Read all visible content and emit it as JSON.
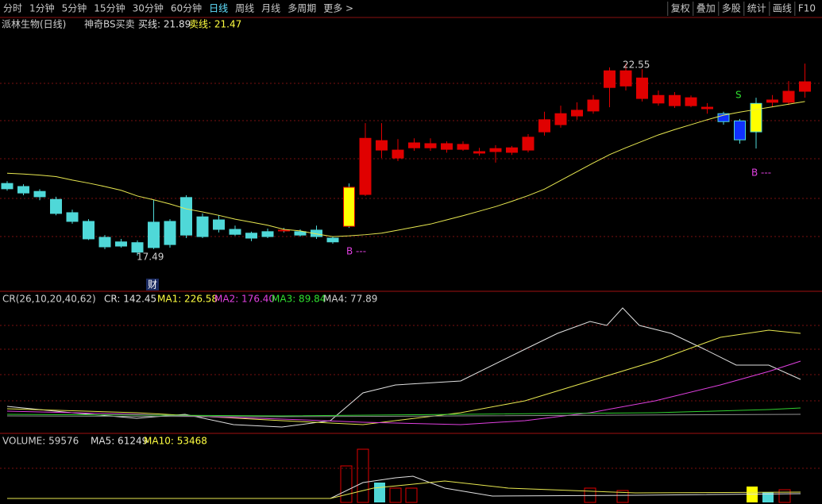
{
  "toolbar": {
    "periods": [
      "分时",
      "1分钟",
      "5分钟",
      "15分钟",
      "30分钟",
      "60分钟",
      "日线",
      "周线",
      "月线",
      "多周期",
      "更多 >"
    ],
    "tools": [
      "复权",
      "叠加",
      "多股",
      "统计",
      "画线",
      "F10"
    ]
  },
  "header": {
    "title": "派林生物(日线)",
    "indicator": "神奇BS买卖",
    "buy_line": "买线: 21.89",
    "sell_line": "卖线: 21.47"
  },
  "chart_data": {
    "type": "candlestick",
    "ylim": [
      16.59,
      23.64
    ],
    "open": [
      19.39,
      19.31,
      19.18,
      18.97,
      18.62,
      18.39,
      17.97,
      17.85,
      17.83,
      18.37,
      18.39,
      19.02,
      18.51,
      18.43,
      18.18,
      18.08,
      18.12,
      18.14,
      18.12,
      18.16,
      17.95,
      18.26,
      19.1,
      20.27,
      20.06,
      20.33,
      20.33,
      20.29,
      20.29,
      20.19,
      20.23,
      20.21,
      20.27,
      20.75,
      20.94,
      21.17,
      21.3,
      21.92,
      21.96,
      21.63,
      21.51,
      21.44,
      21.44,
      21.36,
      21.23,
      21.04,
      20.75,
      21.53,
      21.53,
      21.82
    ],
    "high": [
      19.45,
      19.37,
      19.24,
      19.04,
      18.7,
      18.45,
      18.03,
      17.93,
      17.89,
      18.96,
      18.45,
      19.08,
      18.6,
      18.56,
      18.28,
      18.12,
      18.2,
      18.22,
      18.18,
      18.28,
      17.99,
      19.39,
      20.98,
      20.98,
      20.56,
      20.58,
      20.58,
      20.5,
      20.5,
      20.33,
      20.4,
      20.38,
      20.69,
      21.28,
      21.44,
      21.53,
      21.72,
      22.45,
      22.55,
      22.4,
      21.84,
      21.8,
      21.71,
      21.51,
      21.28,
      21.09,
      21.65,
      21.72,
      22.09,
      22.55
    ],
    "low": [
      19.2,
      19.08,
      18.95,
      18.55,
      18.33,
      17.9,
      17.66,
      17.7,
      17.49,
      17.66,
      17.7,
      17.95,
      17.95,
      18.1,
      18.01,
      17.87,
      17.95,
      18.1,
      17.99,
      17.93,
      17.8,
      18.22,
      19.06,
      20.06,
      19.98,
      20.25,
      20.25,
      20.2,
      20.25,
      20.12,
      19.94,
      20.14,
      20.21,
      20.65,
      20.86,
      21.07,
      21.23,
      21.4,
      21.84,
      21.55,
      21.44,
      21.38,
      21.4,
      21.23,
      20.94,
      20.44,
      20.31,
      21.4,
      21.46,
      21.65
    ],
    "close": [
      19.25,
      19.14,
      19.04,
      18.6,
      18.39,
      17.93,
      17.72,
      17.74,
      17.58,
      17.7,
      17.78,
      18.03,
      17.99,
      18.18,
      18.05,
      17.95,
      17.99,
      18.16,
      18.03,
      17.99,
      17.85,
      19.29,
      20.58,
      20.52,
      20.27,
      20.46,
      20.44,
      20.44,
      20.42,
      20.23,
      20.31,
      20.33,
      20.61,
      21.07,
      21.23,
      21.32,
      21.59,
      22.36,
      22.36,
      22.17,
      21.71,
      21.71,
      21.65,
      21.4,
      21.02,
      20.54,
      21.5,
      21.59,
      21.82,
      22.07
    ],
    "colors": [
      "#4fd8d8",
      "#4fd8d8",
      "#4fd8d8",
      "#4fd8d8",
      "#4fd8d8",
      "#4fd8d8",
      "#4fd8d8",
      "#4fd8d8",
      "#4fd8d8",
      "#4fd8d8",
      "#4fd8d8",
      "#4fd8d8",
      "#4fd8d8",
      "#4fd8d8",
      "#4fd8d8",
      "#4fd8d8",
      "#4fd8d8",
      "#ffff00",
      "#4fd8d8",
      "#4fd8d8",
      "#4fd8d8",
      "#ffff00",
      "#e00000",
      "#e00000",
      "#e00000",
      "#e00000",
      "#e00000",
      "#e00000",
      "#e00000",
      "#e00000",
      "#e00000",
      "#e00000",
      "#e00000",
      "#e00000",
      "#e00000",
      "#e00000",
      "#e00000",
      "#e00000",
      "#e00000",
      "#e00000",
      "#e00000",
      "#e00000",
      "#e00000",
      "#e00000",
      "#1030ff",
      "#1030ff",
      "#ffff00",
      "#e00000",
      "#e00000",
      "#e00000"
    ],
    "ma": [
      19.66,
      19.64,
      19.61,
      19.57,
      19.48,
      19.4,
      19.31,
      19.21,
      19.06,
      18.96,
      18.85,
      18.72,
      18.64,
      18.55,
      18.45,
      18.37,
      18.29,
      18.18,
      18.14,
      18.06,
      17.99,
      18.01,
      18.04,
      18.08,
      18.16,
      18.24,
      18.32,
      18.43,
      18.54,
      18.66,
      18.78,
      18.92,
      19.07,
      19.24,
      19.47,
      19.7,
      19.93,
      20.15,
      20.33,
      20.5,
      20.67,
      20.81,
      20.94,
      21.07,
      21.19,
      21.27,
      21.34,
      21.41,
      21.48,
      21.55
    ],
    "ma_color": "#e8e850",
    "annotations": {
      "high_label": "22.55",
      "low_label": "17.49",
      "buy_mark_1": "B ---",
      "buy_mark_2": "B ---",
      "sell_mark": "S",
      "finance_mark": "财"
    }
  },
  "cr_panel": {
    "name": "CR(26,10,20,40,62)",
    "cr": "CR: 142.45",
    "ma1": "MA1: 226.58",
    "ma2": "MA2: 176.40",
    "ma3": "MA3: 89.84",
    "ma4": "MA4: 77.89"
  },
  "volume_panel": {
    "name": "VOLUME: 59576",
    "ma5": "MA5: 61249",
    "ma10": "MA10: 53468"
  }
}
